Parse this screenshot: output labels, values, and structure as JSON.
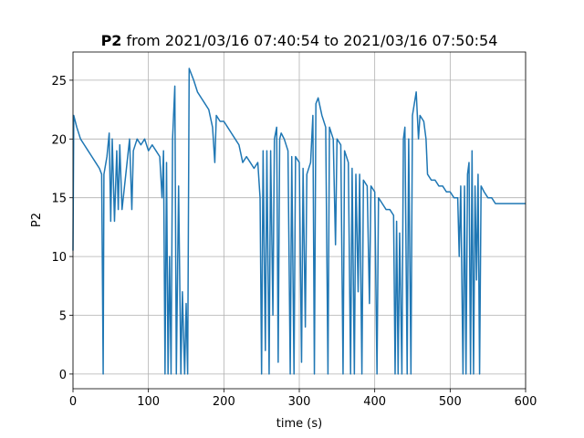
{
  "chart_data": {
    "type": "line",
    "title_bold": "P2",
    "title": "from 2021/03/16 07:40:54 to 2021/03/16 07:50:54",
    "x_label": "time (s)",
    "y_label": "P2",
    "xlim": [
      0,
      600
    ],
    "ylim": [
      -1.25,
      27.4
    ],
    "xticks": [
      0,
      100,
      200,
      300,
      400,
      500,
      600
    ],
    "yticks": [
      0,
      5,
      10,
      15,
      20,
      25
    ],
    "grid": true,
    "color": "#1f77b4",
    "x": [
      0,
      1,
      5,
      10,
      15,
      20,
      25,
      30,
      35,
      38,
      40,
      41,
      45,
      48,
      50,
      52,
      55,
      58,
      60,
      62,
      65,
      70,
      75,
      78,
      80,
      85,
      90,
      95,
      100,
      105,
      110,
      115,
      118,
      120,
      122,
      124,
      126,
      128,
      130,
      132,
      135,
      137,
      140,
      143,
      145,
      148,
      150,
      152,
      154,
      160,
      165,
      170,
      175,
      180,
      185,
      188,
      190,
      195,
      200,
      205,
      210,
      215,
      220,
      225,
      230,
      235,
      240,
      245,
      248,
      250,
      252,
      255,
      257,
      260,
      262,
      265,
      267,
      270,
      272,
      274,
      276,
      280,
      285,
      288,
      290,
      293,
      295,
      300,
      303,
      305,
      308,
      310,
      315,
      318,
      320,
      322,
      325,
      330,
      335,
      338,
      340,
      345,
      348,
      350,
      355,
      358,
      360,
      365,
      368,
      370,
      373,
      375,
      378,
      380,
      383,
      385,
      390,
      393,
      395,
      400,
      403,
      405,
      410,
      415,
      420,
      425,
      427,
      429,
      431,
      433,
      436,
      438,
      440,
      443,
      445,
      448,
      450,
      455,
      458,
      460,
      465,
      468,
      470,
      475,
      480,
      485,
      490,
      495,
      500,
      505,
      510,
      512,
      514,
      517,
      519,
      521,
      523,
      525,
      527,
      529,
      531,
      533,
      535,
      537,
      539,
      541,
      545,
      550,
      555,
      560,
      565,
      570,
      575,
      580,
      590,
      600
    ],
    "values": [
      10.5,
      22,
      21,
      20,
      19.5,
      19,
      18.5,
      18,
      17.5,
      17,
      0,
      17,
      18.5,
      20.5,
      13,
      20,
      13,
      19,
      14,
      19.5,
      14,
      17,
      20,
      14,
      19,
      20,
      19.5,
      20,
      19,
      19.5,
      19,
      18.5,
      15,
      19,
      0,
      18,
      0,
      10,
      0,
      20,
      24.5,
      0,
      16,
      0,
      7,
      0,
      6,
      0,
      26,
      25,
      24,
      23.5,
      23,
      22.5,
      21,
      18,
      22,
      21.5,
      21.5,
      21,
      20.5,
      20,
      19.5,
      18,
      18.5,
      18,
      17.5,
      18,
      15,
      0,
      19,
      2,
      19,
      0,
      19,
      5,
      20,
      21,
      1,
      20,
      20.5,
      20,
      19,
      0,
      18.5,
      0,
      18.5,
      18,
      1,
      17.5,
      4,
      17,
      18,
      22,
      0,
      23,
      23.5,
      22,
      21,
      0,
      21,
      20,
      11,
      20,
      19.5,
      0,
      19,
      18,
      0,
      17.5,
      0,
      17,
      7,
      17,
      0,
      16.5,
      16,
      6,
      16,
      15.5,
      0,
      15,
      14.5,
      14,
      14,
      13.5,
      0,
      13,
      0,
      12,
      0,
      20,
      21,
      0,
      20,
      0,
      22,
      24,
      20,
      22,
      21.5,
      20,
      17,
      16.5,
      16.5,
      16,
      16,
      15.5,
      15.5,
      15,
      15,
      10,
      16,
      0,
      16,
      0,
      17,
      18,
      0,
      19,
      0,
      16,
      8,
      17,
      0,
      16,
      15.5,
      15,
      15,
      14.5,
      14.5,
      14.5,
      14.5,
      14.5,
      14.5,
      14.5
    ]
  }
}
